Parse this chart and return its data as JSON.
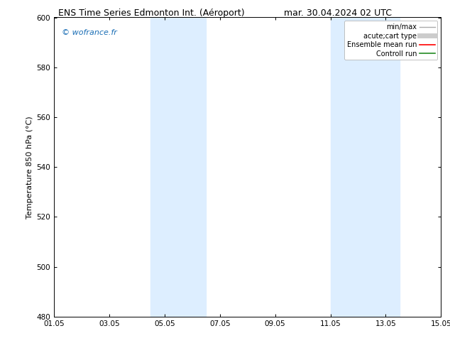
{
  "title_left": "ENS Time Series Edmonton Int. (Aéroport)",
  "title_right": "mar. 30.04.2024 02 UTC",
  "ylabel": "Temperature 850 hPa (°C)",
  "watermark": "© wofrance.fr",
  "watermark_color": "#1a6eb5",
  "ylim": [
    480,
    600
  ],
  "yticks": [
    480,
    500,
    520,
    540,
    560,
    580,
    600
  ],
  "xtick_labels": [
    "01.05",
    "03.05",
    "05.05",
    "07.05",
    "09.05",
    "11.05",
    "13.05",
    "15.05"
  ],
  "xtick_positions": [
    0,
    2,
    4,
    6,
    8,
    10,
    12,
    14
  ],
  "xlim": [
    0,
    14
  ],
  "shaded_bands": [
    {
      "x_start": 3.5,
      "x_end": 5.5
    },
    {
      "x_start": 10.0,
      "x_end": 12.5
    }
  ],
  "shade_color": "#ddeeff",
  "background_color": "#ffffff",
  "legend_entries": [
    {
      "label": "min/max",
      "color": "#aaaaaa",
      "lw": 1.0
    },
    {
      "label": "acute;cart type",
      "color": "#cccccc",
      "lw": 5
    },
    {
      "label": "Ensemble mean run",
      "color": "#ff0000",
      "lw": 1.2
    },
    {
      "label": "Controll run",
      "color": "#228B22",
      "lw": 1.2
    }
  ],
  "title_fontsize": 9,
  "ylabel_fontsize": 8,
  "tick_fontsize": 7.5,
  "legend_fontsize": 7,
  "watermark_fontsize": 8
}
